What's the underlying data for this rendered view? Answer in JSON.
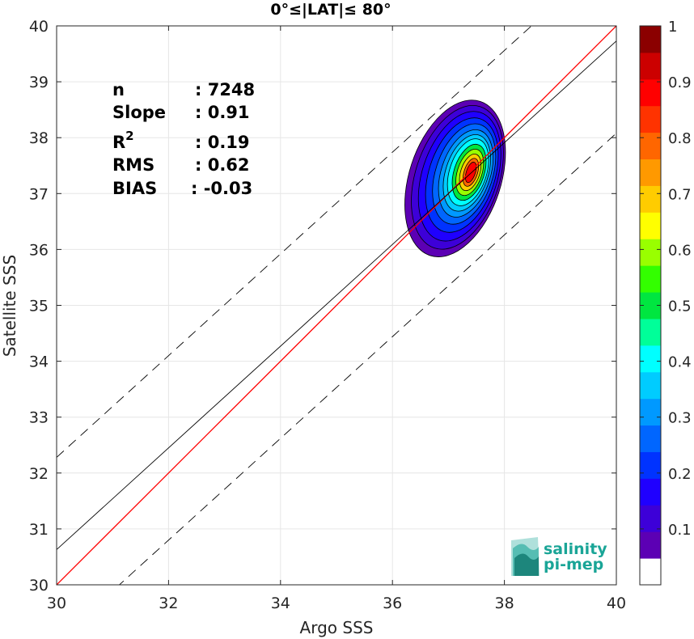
{
  "chart_data": {
    "type": "heatmap",
    "title": "0°≤|LAT|≤ 80°",
    "xlabel": "Argo SSS",
    "ylabel": "Satellite SSS",
    "xlim": [
      30,
      40
    ],
    "ylim": [
      30,
      40
    ],
    "x_ticks": [
      "30",
      "32",
      "34",
      "36",
      "38",
      "40"
    ],
    "y_ticks": [
      "30",
      "31",
      "32",
      "33",
      "34",
      "35",
      "36",
      "37",
      "38",
      "39",
      "40"
    ],
    "grid": true,
    "stats": [
      {
        "label": "n",
        "value": ": 7248"
      },
      {
        "label": "Slope",
        "value": ": 0.91"
      },
      {
        "label": "R",
        "sup": "2",
        "value": ": 0.19"
      },
      {
        "label": "RMS",
        "value": ": 0.62"
      },
      {
        "label": "BIAS",
        "value": ": -0.03"
      }
    ],
    "lines": {
      "identity": {
        "x": [
          30,
          40
        ],
        "y": [
          30,
          40
        ],
        "color": "#ff0000"
      },
      "regression": {
        "x": [
          30,
          40
        ],
        "y": [
          30.63,
          39.73
        ],
        "color": "#000000"
      },
      "upper_bound": {
        "x": [
          30,
          40
        ],
        "y": [
          32.28,
          41.38
        ],
        "color": "#000000",
        "dash": true
      },
      "lower_bound": {
        "x": [
          30,
          40
        ],
        "y": [
          28.98,
          38.08
        ],
        "color": "#000000",
        "dash": true
      }
    },
    "density_center": {
      "x": 37.4,
      "y": 37.35
    },
    "contour_levels": [
      {
        "level": 0.05,
        "rx": 0.82,
        "ry": 1.45,
        "dx": -0.28,
        "dy": -0.08
      },
      {
        "level": 0.1,
        "rx": 0.75,
        "ry": 1.33,
        "dx": -0.24,
        "dy": -0.06
      },
      {
        "level": 0.15,
        "rx": 0.67,
        "ry": 1.2,
        "dx": -0.2,
        "dy": -0.04
      },
      {
        "level": 0.2,
        "rx": 0.59,
        "ry": 1.06,
        "dx": -0.16,
        "dy": -0.02
      },
      {
        "level": 0.25,
        "rx": 0.51,
        "ry": 0.93,
        "dx": -0.12,
        "dy": 0.0
      },
      {
        "level": 0.3,
        "rx": 0.44,
        "ry": 0.81,
        "dx": -0.09,
        "dy": 0.01
      },
      {
        "level": 0.35,
        "rx": 0.38,
        "ry": 0.71,
        "dx": -0.07,
        "dy": 0.02
      },
      {
        "level": 0.4,
        "rx": 0.33,
        "ry": 0.62,
        "dx": -0.05,
        "dy": 0.03
      },
      {
        "level": 0.5,
        "rx": 0.27,
        "ry": 0.52,
        "dx": -0.03,
        "dy": 0.03
      },
      {
        "level": 0.6,
        "rx": 0.22,
        "ry": 0.43,
        "dx": -0.02,
        "dy": 0.03
      },
      {
        "level": 0.7,
        "rx": 0.17,
        "ry": 0.34,
        "dx": -0.01,
        "dy": 0.03
      },
      {
        "level": 0.8,
        "rx": 0.12,
        "ry": 0.26,
        "dx": 0.0,
        "dy": 0.03
      },
      {
        "level": 0.9,
        "rx": 0.08,
        "ry": 0.19,
        "dx": 0.0,
        "dy": 0.03
      }
    ],
    "colorbar": {
      "min": 0,
      "max": 1,
      "tick_labels": [
        "0.1",
        "0.2",
        "0.3",
        "0.4",
        "0.5",
        "0.6",
        "0.7",
        "0.8",
        "0.9",
        "1"
      ],
      "tick_values": [
        0.1,
        0.2,
        0.3,
        0.4,
        0.5,
        0.6,
        0.7,
        0.8,
        0.9,
        1.0
      ],
      "colors": [
        "#ffffff",
        "#5c00b4",
        "#3d00d8",
        "#1f00ff",
        "#0033ff",
        "#0066ff",
        "#0099ff",
        "#00ccff",
        "#00ffff",
        "#00ff99",
        "#00e640",
        "#33ff00",
        "#99ff00",
        "#ffff00",
        "#ffcc00",
        "#ff9900",
        "#ff6600",
        "#ff3300",
        "#ff0000",
        "#cc0000",
        "#8b0000"
      ]
    }
  },
  "logo": {
    "line1": "salinity",
    "line2": "pi-mep",
    "color": "#1aa597"
  }
}
